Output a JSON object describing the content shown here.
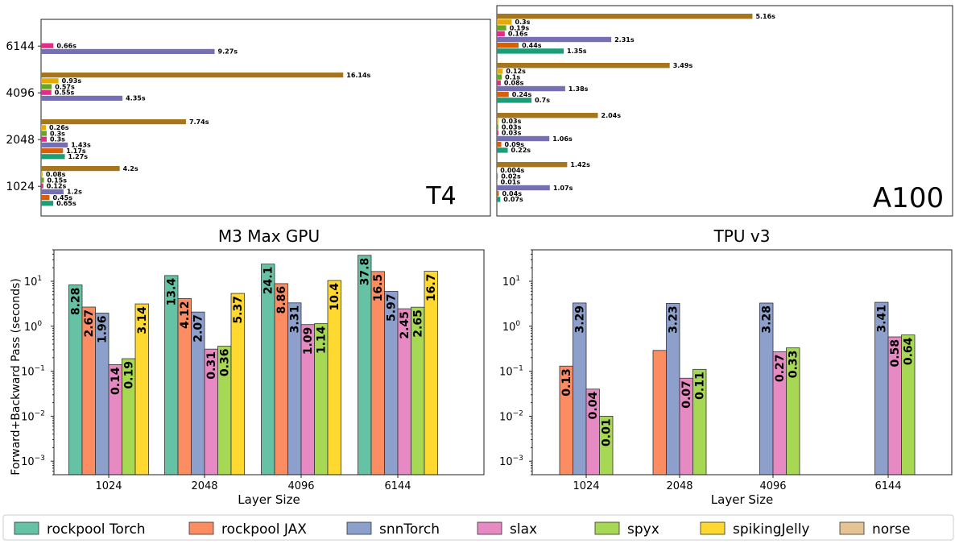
{
  "colors": {
    "rockpool Torch": "#1b9e77",
    "rockpool JAX": "#d95f02",
    "snnTorch": "#7570b3",
    "slax": "#e7298a",
    "spyx": "#66a61e",
    "spikingJelly": "#e6ab02",
    "norse": "#a6761d"
  },
  "colors_light": {
    "rockpool Torch": "#66c2a5",
    "rockpool JAX": "#fc8d62",
    "snnTorch": "#8da0cb",
    "slax": "#e78ac3",
    "spyx": "#a6d854",
    "spikingJelly": "#ffd92f",
    "norse": "#e5c494"
  },
  "legend": {
    "items": [
      "rockpool Torch",
      "rockpool JAX",
      "snnTorch",
      "slax",
      "spyx",
      "spikingJelly",
      "norse"
    ]
  },
  "chart_data": [
    {
      "id": "t4",
      "type": "bar",
      "orientation": "horizontal",
      "title": "T4",
      "categories": [
        "1024",
        "2048",
        "4096",
        "6144"
      ],
      "series": [
        {
          "name": "rockpool Torch",
          "values": [
            0.65,
            1.27,
            null,
            null
          ],
          "labels": [
            "0.65s",
            "1.27s",
            "",
            ""
          ]
        },
        {
          "name": "rockpool JAX",
          "values": [
            0.45,
            1.17,
            null,
            null
          ],
          "labels": [
            "0.45s",
            "1.17s",
            "",
            ""
          ]
        },
        {
          "name": "snnTorch",
          "values": [
            1.2,
            1.43,
            4.35,
            9.27
          ],
          "labels": [
            "1.2s",
            "1.43s",
            "4.35s",
            "9.27s"
          ]
        },
        {
          "name": "slax",
          "values": [
            0.12,
            0.3,
            0.55,
            0.66
          ],
          "labels": [
            "0.12s",
            "0.3s",
            "0.55s",
            "0.66s"
          ]
        },
        {
          "name": "spyx",
          "values": [
            0.15,
            0.3,
            0.57,
            null
          ],
          "labels": [
            "0.15s",
            "0.3s",
            "0.57s",
            ""
          ]
        },
        {
          "name": "spikingJelly",
          "values": [
            0.08,
            0.26,
            0.93,
            null
          ],
          "labels": [
            "0.08s",
            "0.26s",
            "0.93s",
            ""
          ]
        },
        {
          "name": "norse",
          "values": [
            4.2,
            7.74,
            16.14,
            null
          ],
          "labels": [
            "4.2s",
            "7.74s",
            "16.14s",
            ""
          ]
        }
      ]
    },
    {
      "id": "a100",
      "type": "bar",
      "orientation": "horizontal",
      "title": "A100",
      "categories": [
        "1024",
        "2048",
        "4096",
        "6144"
      ],
      "series": [
        {
          "name": "rockpool Torch",
          "values": [
            0.07,
            0.22,
            0.7,
            1.35
          ],
          "labels": [
            "0.07s",
            "0.22s",
            "0.7s",
            "1.35s"
          ]
        },
        {
          "name": "rockpool JAX",
          "values": [
            0.04,
            0.09,
            0.24,
            0.44
          ],
          "labels": [
            "0.04s",
            "0.09s",
            "0.24s",
            "0.44s"
          ]
        },
        {
          "name": "snnTorch",
          "values": [
            1.07,
            1.06,
            1.38,
            2.31
          ],
          "labels": [
            "1.07s",
            "1.06s",
            "1.38s",
            "2.31s"
          ]
        },
        {
          "name": "slax",
          "values": [
            0.01,
            0.03,
            0.08,
            0.16
          ],
          "labels": [
            "0.01s",
            "0.03s",
            "0.08s",
            "0.16s"
          ]
        },
        {
          "name": "spyx",
          "values": [
            0.02,
            0.03,
            0.1,
            0.19
          ],
          "labels": [
            "0.02s",
            "0.03s",
            "0.1s",
            "0.19s"
          ]
        },
        {
          "name": "spikingJelly",
          "values": [
            0.004,
            0.03,
            0.12,
            0.3
          ],
          "labels": [
            "0.004s",
            "0.03s",
            "0.12s",
            "0.3s"
          ]
        },
        {
          "name": "norse",
          "values": [
            1.42,
            2.04,
            3.49,
            5.16
          ],
          "labels": [
            "1.42s",
            "2.04s",
            "3.49s",
            "5.16s"
          ]
        }
      ]
    },
    {
      "id": "m3",
      "type": "bar",
      "title": "M3 Max GPU",
      "xlabel": "Layer Size",
      "ylabel": "Forward+Backward Pass (seconds)",
      "yscale": "log",
      "ylim": [
        0.0005,
        50
      ],
      "yticks": [
        "10^1",
        "10^0",
        "10^-1",
        "10^-2",
        "10^-3"
      ],
      "categories": [
        "1024",
        "2048",
        "4096",
        "6144"
      ],
      "series": [
        {
          "name": "rockpool Torch",
          "values": [
            8.28,
            13.4,
            24.1,
            37.8
          ],
          "labels": [
            "8.28",
            "13.4",
            "24.1",
            "37.8"
          ]
        },
        {
          "name": "rockpool JAX",
          "values": [
            2.67,
            4.12,
            8.86,
            16.5
          ],
          "labels": [
            "2.67",
            "4.12",
            "8.86",
            "16.5"
          ]
        },
        {
          "name": "snnTorch",
          "values": [
            1.96,
            2.07,
            3.31,
            5.97
          ],
          "labels": [
            "1.96",
            "2.07",
            "3.31",
            "5.97"
          ]
        },
        {
          "name": "slax",
          "values": [
            0.14,
            0.31,
            1.09,
            2.45
          ],
          "labels": [
            "0.14",
            "0.31",
            "1.09",
            "2.45"
          ]
        },
        {
          "name": "spyx",
          "values": [
            0.19,
            0.36,
            1.14,
            2.65
          ],
          "labels": [
            "0.19",
            "0.36",
            "1.14",
            "2.65"
          ]
        },
        {
          "name": "spikingJelly",
          "values": [
            3.14,
            5.37,
            10.4,
            16.7
          ],
          "labels": [
            "3.14",
            "5.37",
            "10.4",
            "16.7"
          ]
        }
      ]
    },
    {
      "id": "tpu",
      "type": "bar",
      "title": "TPU v3",
      "xlabel": "Layer Size",
      "yscale": "log",
      "ylim": [
        0.0005,
        50
      ],
      "yticks": [
        "10^1",
        "10^0",
        "10^-1",
        "10^-2",
        "10^-3"
      ],
      "categories": [
        "1024",
        "2048",
        "4096",
        "6144"
      ],
      "series": [
        {
          "name": "rockpool JAX",
          "values": [
            0.13,
            0.29,
            null,
            null
          ],
          "labels": [
            "0.13",
            "",
            "",
            ""
          ]
        },
        {
          "name": "snnTorch",
          "values": [
            3.29,
            3.23,
            3.28,
            3.41
          ],
          "labels": [
            "3.29",
            "3.23",
            "3.28",
            "3.41"
          ]
        },
        {
          "name": "slax",
          "values": [
            0.04,
            0.07,
            0.27,
            0.58
          ],
          "labels": [
            "0.04",
            "0.07",
            "0.27",
            "0.58"
          ]
        },
        {
          "name": "spyx",
          "values": [
            0.01,
            0.11,
            0.33,
            0.64
          ],
          "labels": [
            "0.01",
            "0.11",
            "0.33",
            "0.64"
          ]
        }
      ]
    }
  ]
}
